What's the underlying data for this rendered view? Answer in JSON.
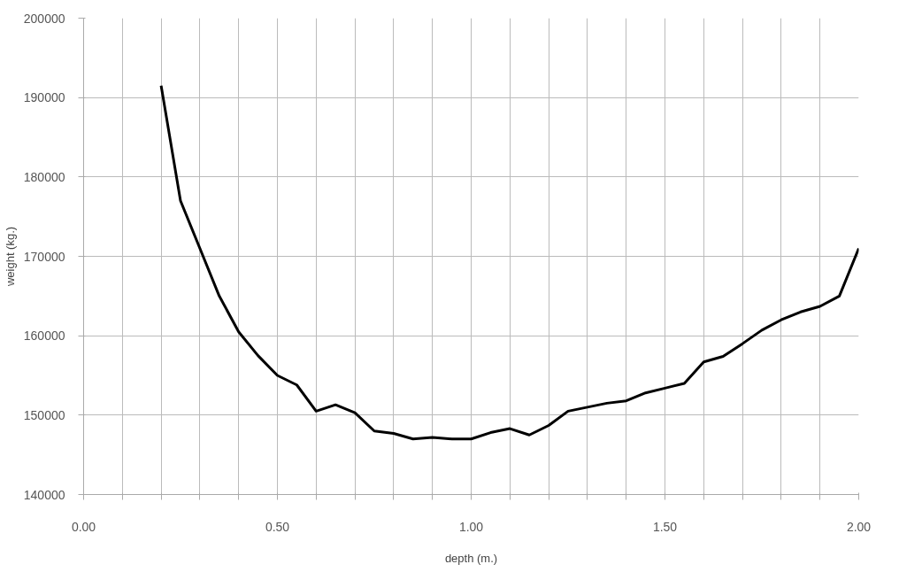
{
  "chart_data": {
    "type": "line",
    "xlabel": "depth (m.)",
    "ylabel": "weight (kg.)",
    "x": [
      0.2,
      0.25,
      0.3,
      0.35,
      0.4,
      0.45,
      0.5,
      0.55,
      0.6,
      0.65,
      0.7,
      0.75,
      0.8,
      0.85,
      0.9,
      0.95,
      1.0,
      1.05,
      1.1,
      1.15,
      1.2,
      1.25,
      1.3,
      1.35,
      1.4,
      1.45,
      1.5,
      1.55,
      1.6,
      1.65,
      1.7,
      1.75,
      1.8,
      1.85,
      1.9,
      1.95,
      2.0
    ],
    "series": [
      {
        "color": "#000000",
        "values": [
          191500,
          177000,
          171000,
          165000,
          160500,
          157500,
          155000,
          153800,
          150500,
          151300,
          150300,
          148000,
          147700,
          147000,
          147200,
          147000,
          147000,
          147800,
          148300,
          147500,
          148700,
          150500,
          151000,
          151500,
          151800,
          152800,
          153400,
          154000,
          156700,
          157400,
          159000,
          160700,
          162000,
          163000,
          163700,
          165000,
          171000
        ]
      }
    ],
    "xlim": [
      0,
      2
    ],
    "ylim": [
      140000,
      200000
    ],
    "xticks": [
      {
        "value": 0,
        "label": "0.00"
      },
      {
        "value": 0.1,
        "label": null
      },
      {
        "value": 0.2,
        "label": null
      },
      {
        "value": 0.3,
        "label": null
      },
      {
        "value": 0.4,
        "label": null
      },
      {
        "value": 0.5,
        "label": "0.50"
      },
      {
        "value": 0.6,
        "label": null
      },
      {
        "value": 0.7,
        "label": null
      },
      {
        "value": 0.8,
        "label": null
      },
      {
        "value": 0.9,
        "label": null
      },
      {
        "value": 1.0,
        "label": "1.00"
      },
      {
        "value": 1.1,
        "label": null
      },
      {
        "value": 1.2,
        "label": null
      },
      {
        "value": 1.3,
        "label": null
      },
      {
        "value": 1.4,
        "label": null
      },
      {
        "value": 1.5,
        "label": "1.50"
      },
      {
        "value": 1.6,
        "label": null
      },
      {
        "value": 1.7,
        "label": null
      },
      {
        "value": 1.8,
        "label": null
      },
      {
        "value": 1.9,
        "label": null
      },
      {
        "value": 2.0,
        "label": "2.00"
      }
    ],
    "yticks": [
      140000,
      150000,
      160000,
      170000,
      180000,
      190000,
      200000
    ],
    "grid": true,
    "marker": "none",
    "line_style": "solid"
  }
}
